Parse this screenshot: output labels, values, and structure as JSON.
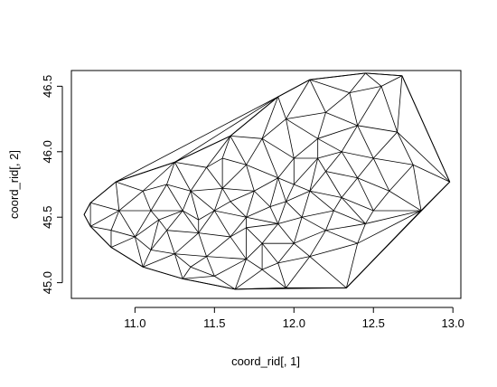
{
  "chart_data": {
    "type": "scatter",
    "plot_kind": "delaunay-triangulation-mesh",
    "xlabel": "coord_rid[, 1]",
    "ylabel": "coord_rid[, 2]",
    "xlim": [
      10.6,
      13.05
    ],
    "ylim": [
      44.88,
      46.62
    ],
    "x_ticks": [
      11.0,
      11.5,
      12.0,
      12.5,
      13.0
    ],
    "x_tick_labels": [
      "11.0",
      "11.5",
      "12.0",
      "12.5",
      "13.0"
    ],
    "y_ticks": [
      45.0,
      45.5,
      46.0,
      46.5
    ],
    "y_tick_labels": [
      "45.0",
      "45.5",
      "46.0",
      "46.5"
    ],
    "hull": [
      [
        12.68,
        46.58
      ],
      [
        12.98,
        45.77
      ],
      [
        12.8,
        45.55
      ],
      [
        12.33,
        44.96
      ],
      [
        11.95,
        44.96
      ],
      [
        11.63,
        44.95
      ],
      [
        11.3,
        45.03
      ],
      [
        11.05,
        45.12
      ],
      [
        10.85,
        45.27
      ],
      [
        10.72,
        45.43
      ],
      [
        10.68,
        45.52
      ],
      [
        10.72,
        45.61
      ],
      [
        10.88,
        45.77
      ],
      [
        11.25,
        45.92
      ],
      [
        11.6,
        46.12
      ],
      [
        11.9,
        46.42
      ],
      [
        12.1,
        46.55
      ],
      [
        12.45,
        46.6
      ]
    ],
    "points": [
      [
        12.68,
        46.58
      ],
      [
        12.45,
        46.6
      ],
      [
        12.1,
        46.55
      ],
      [
        11.9,
        46.42
      ],
      [
        12.35,
        46.45
      ],
      [
        12.55,
        46.5
      ],
      [
        12.2,
        46.3
      ],
      [
        12.4,
        46.2
      ],
      [
        11.95,
        46.25
      ],
      [
        12.15,
        46.1
      ],
      [
        11.8,
        46.1
      ],
      [
        12.3,
        46.0
      ],
      [
        12.5,
        45.95
      ],
      [
        12.75,
        45.9
      ],
      [
        12.98,
        45.77
      ],
      [
        12.8,
        45.55
      ],
      [
        12.6,
        45.7
      ],
      [
        12.4,
        45.8
      ],
      [
        12.2,
        45.85
      ],
      [
        12.0,
        45.95
      ],
      [
        11.6,
        46.12
      ],
      [
        11.25,
        45.92
      ],
      [
        11.45,
        45.88
      ],
      [
        11.7,
        45.9
      ],
      [
        11.9,
        45.8
      ],
      [
        12.1,
        45.7
      ],
      [
        12.3,
        45.65
      ],
      [
        12.5,
        45.55
      ],
      [
        12.33,
        44.96
      ],
      [
        12.4,
        45.3
      ],
      [
        12.2,
        45.4
      ],
      [
        12.1,
        45.2
      ],
      [
        11.95,
        44.96
      ],
      [
        11.8,
        45.1
      ],
      [
        11.63,
        44.95
      ],
      [
        11.5,
        45.05
      ],
      [
        11.3,
        45.03
      ],
      [
        11.05,
        45.12
      ],
      [
        10.85,
        45.27
      ],
      [
        10.72,
        45.43
      ],
      [
        10.68,
        45.52
      ],
      [
        10.72,
        45.61
      ],
      [
        10.88,
        45.77
      ],
      [
        11.05,
        45.7
      ],
      [
        11.2,
        45.75
      ],
      [
        11.35,
        45.7
      ],
      [
        11.55,
        45.72
      ],
      [
        11.75,
        45.7
      ],
      [
        11.95,
        45.62
      ],
      [
        12.05,
        45.5
      ],
      [
        11.9,
        45.45
      ],
      [
        11.7,
        45.5
      ],
      [
        11.5,
        45.55
      ],
      [
        11.3,
        45.55
      ],
      [
        11.1,
        45.55
      ],
      [
        10.9,
        45.55
      ],
      [
        10.85,
        45.4
      ],
      [
        11.0,
        45.35
      ],
      [
        11.2,
        45.4
      ],
      [
        11.4,
        45.38
      ],
      [
        11.6,
        45.35
      ],
      [
        11.8,
        45.3
      ],
      [
        12.0,
        45.3
      ],
      [
        11.9,
        45.15
      ],
      [
        11.7,
        45.18
      ],
      [
        11.45,
        45.2
      ],
      [
        11.25,
        45.22
      ],
      [
        11.1,
        45.25
      ],
      [
        11.6,
        45.62
      ],
      [
        11.4,
        45.48
      ],
      [
        11.15,
        45.48
      ],
      [
        11.85,
        45.58
      ],
      [
        12.25,
        45.55
      ],
      [
        12.15,
        45.95
      ],
      [
        11.55,
        45.95
      ],
      [
        12.65,
        46.15
      ],
      [
        12.45,
        45.45
      ],
      [
        11.35,
        45.12
      ],
      [
        11.7,
        45.42
      ],
      [
        12.0,
        45.75
      ]
    ]
  }
}
